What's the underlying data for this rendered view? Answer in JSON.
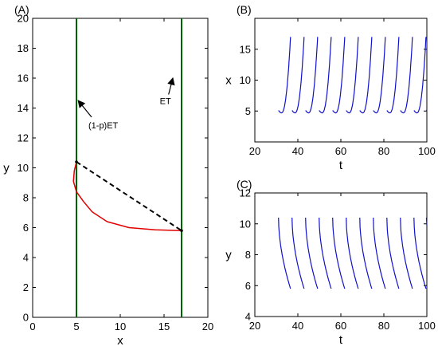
{
  "chart_data": [
    {
      "panel": "(A)",
      "type": "line",
      "xlabel": "x",
      "ylabel": "y",
      "xlim": [
        0,
        20
      ],
      "ylim": [
        0,
        20
      ],
      "xticks": [
        0,
        5,
        10,
        15,
        20
      ],
      "yticks": [
        0,
        2,
        4,
        6,
        8,
        10,
        12,
        14,
        16,
        18,
        20
      ],
      "grid": false,
      "vertical_lines": [
        {
          "x": 5,
          "color": "#006400"
        },
        {
          "x": 17,
          "color": "#006400"
        }
      ],
      "trajectory": {
        "color": "#e00000",
        "points": [
          [
            17,
            5.8
          ],
          [
            14,
            5.85
          ],
          [
            11,
            6.0
          ],
          [
            8.5,
            6.4
          ],
          [
            6.8,
            7.05
          ],
          [
            5.8,
            7.75
          ],
          [
            5.0,
            8.4
          ],
          [
            4.65,
            9.1
          ],
          [
            4.75,
            9.8
          ],
          [
            5.0,
            10.4
          ]
        ]
      },
      "jump": {
        "color": "#000000",
        "style": "dashed",
        "from": [
          5.0,
          10.4
        ],
        "to": [
          17,
          5.8
        ]
      },
      "annotations": [
        {
          "text": "(1-p)ET",
          "target": [
            5.2,
            14.5
          ],
          "label_at": [
            6.0,
            13.5
          ]
        },
        {
          "text": "ET",
          "target": [
            16.0,
            16.0
          ],
          "label_at": [
            15.7,
            14.8
          ]
        }
      ]
    },
    {
      "panel": "(B)",
      "type": "line",
      "xlabel": "t",
      "ylabel": "x",
      "xlim": [
        20,
        100
      ],
      "ylim": [
        0,
        20
      ],
      "xticks": [
        20,
        40,
        60,
        80,
        100
      ],
      "yticks": [
        5,
        10,
        15
      ],
      "grid": false,
      "color": "#1010cc",
      "cycle_starts": [
        31,
        37.3,
        43.6,
        49.9,
        56.2,
        62.5,
        68.8,
        75.1,
        81.4,
        87.7,
        94.0
      ],
      "x_min": 4.7,
      "x_peak": 17
    },
    {
      "panel": "(C)",
      "type": "line",
      "xlabel": "t",
      "ylabel": "y",
      "xlim": [
        20,
        100
      ],
      "ylim": [
        4,
        12
      ],
      "xticks": [
        20,
        40,
        60,
        80,
        100
      ],
      "yticks": [
        4,
        6,
        8,
        10,
        12
      ],
      "grid": false,
      "color": "#1010cc",
      "cycle_starts": [
        31,
        37.3,
        43.6,
        49.9,
        56.2,
        62.5,
        68.8,
        75.1,
        81.4,
        87.7,
        94.0
      ],
      "y_start": 10.4,
      "y_end": 5.8
    }
  ]
}
